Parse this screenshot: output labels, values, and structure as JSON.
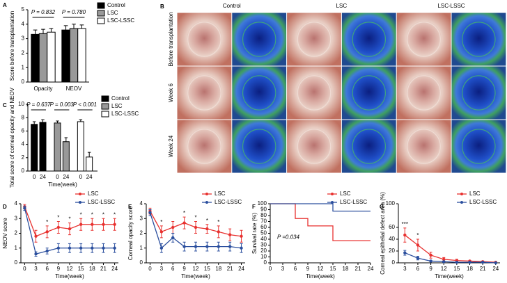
{
  "chart_data": [
    {
      "panel": "A",
      "type": "bar",
      "grouping": "category",
      "ylabel": "Score before transplantation",
      "categories": [
        "Opacity",
        "NEOV"
      ],
      "series": [
        {
          "name": "Control",
          "color": "#000000",
          "values": [
            3.3,
            3.6
          ],
          "errors": [
            0.3,
            0.3
          ]
        },
        {
          "name": "LSC",
          "color": "#999999",
          "values": [
            3.35,
            3.7
          ],
          "errors": [
            0.3,
            0.3
          ]
        },
        {
          "name": "LSC-LSSC",
          "color": "#ffffff",
          "values": [
            3.45,
            3.7
          ],
          "errors": [
            0.25,
            0.25
          ]
        }
      ],
      "annotations": [
        "P = 0.832",
        "P = 0.780"
      ],
      "ylim": [
        0,
        5
      ],
      "yticks": [
        0,
        1,
        2,
        3,
        4,
        5
      ]
    },
    {
      "panel": "C",
      "type": "bar",
      "grouping": "series",
      "ylabel": "Total score of corneal opacity and NEOV",
      "xlabel": "Time(week)",
      "categories": [
        "0",
        "24"
      ],
      "series": [
        {
          "name": "Control",
          "color": "#000000",
          "values": [
            7.0,
            7.3
          ],
          "errors": [
            0.4,
            0.4
          ]
        },
        {
          "name": "LSC",
          "color": "#999999",
          "values": [
            7.2,
            4.4
          ],
          "errors": [
            0.3,
            0.6
          ]
        },
        {
          "name": "LSC-LSSC",
          "color": "#ffffff",
          "values": [
            7.4,
            2.1
          ],
          "errors": [
            0.3,
            0.7
          ]
        }
      ],
      "annotations": [
        "P = 0.637",
        "P = 0.003",
        "P < 0.001"
      ],
      "ylim": [
        0,
        10
      ],
      "yticks": [
        0,
        2,
        4,
        6,
        8,
        10
      ]
    },
    {
      "panel": "D",
      "type": "line",
      "ylabel": "NEOV score",
      "xlabel": "Time(week)",
      "x": [
        0,
        3,
        6,
        9,
        12,
        15,
        18,
        21,
        24
      ],
      "series": [
        {
          "name": "LSC",
          "color": "#e8312f",
          "values": [
            3.8,
            1.8,
            2.1,
            2.4,
            2.3,
            2.6,
            2.6,
            2.6,
            2.6
          ],
          "errors": [
            0.15,
            0.4,
            0.4,
            0.4,
            0.4,
            0.4,
            0.4,
            0.4,
            0.4
          ]
        },
        {
          "name": "LSC-LSSC",
          "color": "#2b4f9e",
          "values": [
            3.7,
            0.6,
            0.8,
            1.0,
            1.0,
            1.0,
            1.0,
            1.0,
            1.0
          ],
          "errors": [
            0.15,
            0.15,
            0.2,
            0.3,
            0.3,
            0.3,
            0.3,
            0.3,
            0.3
          ]
        }
      ],
      "significance": [
        null,
        null,
        "*",
        "*",
        "*",
        "*",
        "*",
        "*",
        "*"
      ],
      "xlim": [
        -1,
        25
      ],
      "xticks": [
        0,
        3,
        6,
        9,
        12,
        15,
        18,
        21,
        24
      ],
      "ylim": [
        0,
        4
      ],
      "yticks": [
        0,
        1,
        2,
        3,
        4
      ]
    },
    {
      "panel": "E",
      "type": "line",
      "ylabel": "Corneal opacity score",
      "xlabel": "Time(week)",
      "x": [
        0,
        3,
        6,
        9,
        12,
        15,
        18,
        21,
        24
      ],
      "series": [
        {
          "name": "LSC",
          "color": "#e8312f",
          "values": [
            3.5,
            2.1,
            2.4,
            2.7,
            2.4,
            2.3,
            2.1,
            1.9,
            1.8
          ],
          "errors": [
            0.2,
            0.4,
            0.4,
            0.4,
            0.4,
            0.3,
            0.4,
            0.4,
            0.4
          ]
        },
        {
          "name": "LSC-LSSC",
          "color": "#2b4f9e",
          "values": [
            3.4,
            1.0,
            1.7,
            1.1,
            1.1,
            1.1,
            1.1,
            1.1,
            1.0
          ],
          "errors": [
            0.2,
            0.3,
            0.3,
            0.3,
            0.3,
            0.3,
            0.3,
            0.3,
            0.3
          ]
        }
      ],
      "significance": [
        null,
        "*",
        null,
        "*",
        "*",
        "*",
        "*",
        null,
        null
      ],
      "xlim": [
        -1,
        25
      ],
      "xticks": [
        0,
        3,
        6,
        9,
        12,
        15,
        18,
        21,
        24
      ],
      "ylim": [
        0,
        4
      ],
      "yticks": [
        0,
        1,
        2,
        3,
        4
      ]
    },
    {
      "panel": "F",
      "type": "step",
      "ylabel": "Survival rate (%)",
      "xlabel": "Time(week)",
      "series": [
        {
          "name": "LSC",
          "color": "#e8312f",
          "x": [
            0,
            6,
            9,
            15,
            24
          ],
          "values": [
            100,
            75,
            62.5,
            37.5,
            37.5
          ]
        },
        {
          "name": "LSC-LSSC",
          "color": "#2b4f9e",
          "x": [
            0,
            15,
            24
          ],
          "values": [
            100,
            87.5,
            87.5
          ]
        }
      ],
      "annotations": [
        "P =0.034"
      ],
      "xlim": [
        0,
        24
      ],
      "xticks": [
        0,
        3,
        6,
        9,
        12,
        15,
        18,
        21,
        24
      ],
      "ylim": [
        0,
        100
      ],
      "yticks": [
        0,
        10,
        20,
        30,
        40,
        50,
        60,
        70,
        80,
        90,
        100
      ]
    },
    {
      "panel": "G",
      "type": "line",
      "ylabel": "Corneal epithelial defect area (%)",
      "xlabel": "Time(week)",
      "x": [
        3,
        6,
        9,
        12,
        15,
        18,
        21,
        24
      ],
      "series": [
        {
          "name": "LSC",
          "color": "#e8312f",
          "values": [
            47,
            30,
            13,
            6,
            4,
            3,
            2,
            1
          ],
          "errors": [
            12,
            10,
            5,
            3,
            2,
            1,
            1,
            1
          ]
        },
        {
          "name": "LSC-LSSC",
          "color": "#2b4f9e",
          "values": [
            17,
            8,
            3,
            2,
            1,
            1,
            1,
            0
          ],
          "errors": [
            4,
            3,
            1,
            1,
            0.5,
            0.5,
            0.5,
            0
          ]
        }
      ],
      "significance": [
        "***",
        "*",
        null,
        null,
        null,
        null,
        null,
        null
      ],
      "xlim": [
        1.5,
        25
      ],
      "xticks": [
        3,
        6,
        9,
        12,
        15,
        18,
        21,
        24
      ],
      "ylim": [
        0,
        100
      ],
      "yticks": [
        0,
        20,
        40,
        60,
        100
      ]
    }
  ],
  "photo_panel": {
    "panel": "B",
    "columns": [
      "Control",
      "LSC",
      "LSC-LSSC"
    ],
    "rows": [
      "Before transplantation",
      "Week 6",
      "Week 24"
    ]
  }
}
